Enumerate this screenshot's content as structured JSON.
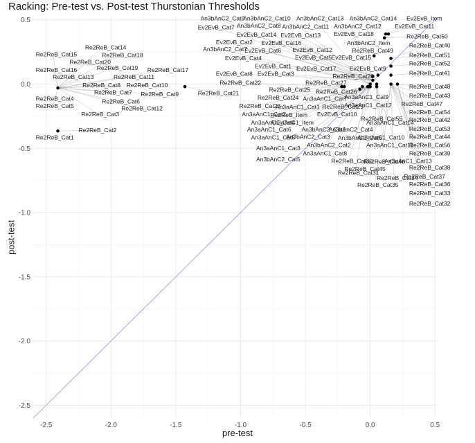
{
  "chart_data": {
    "type": "scatter",
    "title": "Racking: Pre-test vs. Post-test Thurstonian Thresholds",
    "xlabel": "pre-test",
    "ylabel": "post-test",
    "xlim": [
      -2.6,
      0.52
    ],
    "ylim": [
      -2.6,
      0.52
    ],
    "x_ticks": [
      -2.5,
      -2.0,
      -1.5,
      -1.0,
      -0.5,
      0.0,
      0.5
    ],
    "x_tick_labels": [
      "-2.5",
      "-2.0",
      "-1.5",
      "-1.0",
      "-0.5",
      "0.0",
      "0.5"
    ],
    "y_ticks": [
      -2.5,
      -2.0,
      -1.5,
      -1.0,
      -0.5,
      0.0,
      0.5
    ],
    "y_tick_labels": [
      "-2.5",
      "-2.0",
      "-1.5",
      "-1.0",
      "-0.5",
      "0.0",
      "0.5"
    ],
    "grid": true,
    "reference_line": "y = x",
    "reference_line_color": "#8f8ff5",
    "point_color": "#000000",
    "points": [
      {
        "label": "Re2ReB_Cat1",
        "x": -2.41,
        "y": -0.365,
        "lx": -2.58,
        "ly": -0.43
      },
      {
        "label": "Re2ReB_Cat2",
        "x": -2.41,
        "y": -0.365,
        "lx": -2.25,
        "ly": -0.375
      },
      {
        "label": "Re2ReB_Cat3",
        "x": -2.41,
        "y": -0.03,
        "lx": -2.23,
        "ly": -0.25
      },
      {
        "label": "Re2ReB_Cat4",
        "x": -2.41,
        "y": -0.03,
        "lx": -2.58,
        "ly": -0.13
      },
      {
        "label": "Re2ReB_Cat5",
        "x": -2.41,
        "y": -0.03,
        "lx": -2.58,
        "ly": -0.185
      },
      {
        "label": "Re2ReB_Cat6",
        "x": -2.41,
        "y": -0.03,
        "lx": -2.07,
        "ly": -0.15
      },
      {
        "label": "Re2ReB_Cat7",
        "x": -2.41,
        "y": -0.03,
        "lx": -2.13,
        "ly": -0.08
      },
      {
        "label": "Re2ReB_Cat8",
        "x": -2.41,
        "y": -0.03,
        "lx": -2.22,
        "ly": -0.025
      },
      {
        "label": "Re2ReB_Cat9",
        "x": -2.41,
        "y": -0.03,
        "lx": -1.77,
        "ly": -0.095
      },
      {
        "label": "Re2ReB_Cat10",
        "x": -2.41,
        "y": -0.03,
        "lx": -1.88,
        "ly": -0.025
      },
      {
        "label": "Re2ReB_Cat11",
        "x": -2.41,
        "y": -0.03,
        "lx": -1.98,
        "ly": 0.04
      },
      {
        "label": "Re2ReB_Cat12",
        "x": -2.41,
        "y": -0.03,
        "lx": -1.92,
        "ly": -0.205
      },
      {
        "label": "Re2ReB_Cat13",
        "x": -2.41,
        "y": -0.03,
        "lx": -2.45,
        "ly": 0.04
      },
      {
        "label": "Re2ReB_Cat14",
        "x": -2.41,
        "y": -0.03,
        "lx": -2.2,
        "ly": 0.27
      },
      {
        "label": "Re2ReB_Cat15",
        "x": -2.41,
        "y": -0.03,
        "lx": -2.58,
        "ly": 0.215
      },
      {
        "label": "Re2ReB_Cat16",
        "x": -2.41,
        "y": -0.03,
        "lx": -2.58,
        "ly": 0.095
      },
      {
        "label": "Re2ReB_Cat17",
        "x": -2.41,
        "y": -0.03,
        "lx": -1.72,
        "ly": 0.095
      },
      {
        "label": "Re2ReB_Cat18",
        "x": -2.41,
        "y": -0.03,
        "lx": -2.07,
        "ly": 0.21
      },
      {
        "label": "Re2ReB_Cat19",
        "x": -2.41,
        "y": -0.03,
        "lx": -2.11,
        "ly": 0.11
      },
      {
        "label": "Re2ReB_Cat20",
        "x": -2.41,
        "y": -0.03,
        "lx": -2.32,
        "ly": 0.155
      },
      {
        "label": "Re2ReB_Cat21",
        "x": -1.43,
        "y": -0.02,
        "lx": -1.33,
        "ly": -0.085
      },
      {
        "label": "Re2ReB_Cat22",
        "x": -0.22,
        "y": -0.02,
        "lx": -1.16,
        "ly": -0.005
      },
      {
        "label": "Re2ReB_Cat23",
        "x": -0.2,
        "y": -0.02,
        "lx": -1.01,
        "ly": -0.185
      },
      {
        "label": "Re2ReB_Cat24",
        "x": -0.2,
        "y": -0.02,
        "lx": -0.87,
        "ly": -0.12
      },
      {
        "label": "Re2ReB_Cat25",
        "x": -0.2,
        "y": -0.02,
        "lx": -0.78,
        "ly": -0.06
      },
      {
        "label": "Re2ReB_Cat26",
        "x": -0.2,
        "y": -0.02,
        "lx": -0.42,
        "ly": -0.075
      },
      {
        "label": "Re2ReB_Cat27",
        "x": -0.2,
        "y": -0.02,
        "lx": -0.5,
        "ly": -0.005
      },
      {
        "label": "Re2ReB_Cat28",
        "x": -0.2,
        "y": -0.02,
        "lx": -0.29,
        "ly": 0.045
      },
      {
        "label": "Re2ReB_Cat29",
        "x": -0.2,
        "y": -0.02,
        "lx": -0.37,
        "ly": -0.19
      },
      {
        "label": "Re2ReB_Cat30",
        "x": -0.01,
        "y": -0.02,
        "lx": -0.3,
        "ly": -0.615
      },
      {
        "label": "Re2ReB_Cat31",
        "x": -0.01,
        "y": -0.02,
        "lx": -0.25,
        "ly": -0.705
      },
      {
        "label": "Re2ReB_Cat32",
        "x": 0.21,
        "y": 0.0,
        "lx": 0.3,
        "ly": -0.945
      },
      {
        "label": "Re2ReB_Cat33",
        "x": 0.21,
        "y": 0.0,
        "lx": 0.3,
        "ly": -0.865
      },
      {
        "label": "Re2ReB_Cat34",
        "x": 0.16,
        "y": 0.0,
        "lx": 0.05,
        "ly": -0.745
      },
      {
        "label": "Re2ReB_Cat35",
        "x": 0.16,
        "y": 0.0,
        "lx": -0.1,
        "ly": -0.8
      },
      {
        "label": "Re2ReB_Cat36",
        "x": 0.21,
        "y": 0.0,
        "lx": 0.3,
        "ly": -0.795
      },
      {
        "label": "Re2ReB_Cat37",
        "x": 0.16,
        "y": 0.0,
        "lx": 0.26,
        "ly": -0.735
      },
      {
        "label": "Re2ReB_Cat38",
        "x": 0.16,
        "y": 0.0,
        "lx": 0.3,
        "ly": -0.665
      },
      {
        "label": "Re2ReB_Cat39",
        "x": 0.16,
        "y": 0.0,
        "lx": 0.3,
        "ly": -0.555
      },
      {
        "label": "Re2ReB_Cat40",
        "x": 0.16,
        "y": 0.2,
        "lx": 0.3,
        "ly": 0.285
      },
      {
        "label": "Re2ReB_Cat41",
        "x": 0.16,
        "y": 0.07,
        "lx": 0.3,
        "ly": 0.07
      },
      {
        "label": "Re2ReB_Cat42",
        "x": 0.16,
        "y": 0.0,
        "lx": 0.3,
        "ly": -0.295
      },
      {
        "label": "Re2ReB_Cat43",
        "x": 0.16,
        "y": 0.0,
        "lx": 0.3,
        "ly": -0.105
      },
      {
        "label": "Re2ReB_Cat44",
        "x": 0.16,
        "y": 0.0,
        "lx": 0.3,
        "ly": -0.425
      },
      {
        "label": "Re2ReB_Cat45",
        "x": 0.16,
        "y": 0.0,
        "lx": -0.2,
        "ly": -0.675
      },
      {
        "label": "Re2ReB_Cat46",
        "x": 0.16,
        "y": 0.0,
        "lx": -0.05,
        "ly": -0.62
      },
      {
        "label": "Re2ReB_Cat47",
        "x": 0.16,
        "y": 0.0,
        "lx": 0.24,
        "ly": -0.17
      },
      {
        "label": "Re2ReB_Cat48",
        "x": 0.16,
        "y": 0.0,
        "lx": 0.3,
        "ly": -0.035
      },
      {
        "label": "Re2ReB_Cat49",
        "x": 0.03,
        "y": 0.22,
        "lx": -0.14,
        "ly": 0.245
      },
      {
        "label": "Re2ReB_Cat50",
        "x": 0.11,
        "y": 0.36,
        "lx": 0.28,
        "ly": 0.355
      },
      {
        "label": "Re2ReB_Cat51",
        "x": 0.16,
        "y": 0.2,
        "lx": 0.3,
        "ly": 0.21
      },
      {
        "label": "Re2ReB_Cat52",
        "x": 0.16,
        "y": 0.14,
        "lx": 0.3,
        "ly": 0.145
      },
      {
        "label": "Re2ReB_Cat53",
        "x": 0.16,
        "y": 0.0,
        "lx": 0.3,
        "ly": -0.365
      },
      {
        "label": "Re2ReB_Cat54",
        "x": 0.16,
        "y": 0.0,
        "lx": 0.3,
        "ly": -0.235
      },
      {
        "label": "Re2ReB_Cat55",
        "x": 0.05,
        "y": 0.0,
        "lx": -0.07,
        "ly": -0.285
      },
      {
        "label": "Re2ReB_Cat56",
        "x": 0.16,
        "y": 0.0,
        "lx": 0.3,
        "ly": -0.49
      },
      {
        "label": "Re2ReB_Item",
        "x": -0.08,
        "y": -0.04,
        "lx": -0.77,
        "ly": -0.255
      },
      {
        "label": "An3aAnC1_Cat1",
        "x": -0.06,
        "y": -0.02,
        "lx": -0.73,
        "ly": -0.195
      },
      {
        "label": "An3aAnC1_Cat2",
        "x": -0.06,
        "y": -0.02,
        "lx": -0.99,
        "ly": -0.25
      },
      {
        "label": "An3aAnC1_Cat3",
        "x": -0.02,
        "y": -0.02,
        "lx": -0.88,
        "ly": -0.515
      },
      {
        "label": "An3aAnC1_Cat4",
        "x": -0.02,
        "y": -0.02,
        "lx": -0.92,
        "ly": -0.315
      },
      {
        "label": "An3aAnC1_Cat5",
        "x": -0.02,
        "y": -0.02,
        "lx": -0.92,
        "ly": -0.43
      },
      {
        "label": "An3aAnC1_Cat6",
        "x": -0.02,
        "y": -0.02,
        "lx": -0.95,
        "ly": -0.37
      },
      {
        "label": "An3aAnC1_Cat7",
        "x": -0.02,
        "y": -0.02,
        "lx": -0.52,
        "ly": -0.13
      },
      {
        "label": "An3aAnC1_Cat8",
        "x": -0.02,
        "y": -0.02,
        "lx": -0.52,
        "ly": -0.555
      },
      {
        "label": "An3aAnC1_Cat9",
        "x": -0.02,
        "y": -0.02,
        "lx": -0.2,
        "ly": -0.115
      },
      {
        "label": "An3aAnC1_Cat10",
        "x": 0.05,
        "y": -0.02,
        "lx": -0.1,
        "ly": -0.43
      },
      {
        "label": "An3aAnC1_Cat11",
        "x": 0.05,
        "y": -0.02,
        "lx": -0.03,
        "ly": -0.49
      },
      {
        "label": "An3aAnC1_Cat12",
        "x": 0.05,
        "y": -0.02,
        "lx": -0.2,
        "ly": -0.18
      },
      {
        "label": "An3aAnC1_Cat13",
        "x": 0.05,
        "y": -0.02,
        "lx": 0.11,
        "ly": -0.615
      },
      {
        "label": "An3aAnC1_Cat14",
        "x": 0.05,
        "y": -0.02,
        "lx": -0.03,
        "ly": -0.315
      },
      {
        "label": "An3aAnC1_Item",
        "x": 0.0,
        "y": -0.02,
        "lx": -0.77,
        "ly": -0.315
      },
      {
        "label": "An3bAnC2_Cat1",
        "x": 0.0,
        "y": -0.02,
        "lx": -0.53,
        "ly": -0.37
      },
      {
        "label": "An3bAnC2_Cat2",
        "x": 0.0,
        "y": -0.02,
        "lx": -0.49,
        "ly": -0.49
      },
      {
        "label": "An3bAnC2_Cat3",
        "x": 0.0,
        "y": -0.02,
        "lx": -0.65,
        "ly": -0.425
      },
      {
        "label": "An3bAnC2_Cat4",
        "x": 0.0,
        "y": -0.02,
        "lx": -0.32,
        "ly": -0.37
      },
      {
        "label": "An3bAnC2_Cat5",
        "x": 0.0,
        "y": -0.02,
        "lx": -0.88,
        "ly": -0.6
      },
      {
        "label": "An3bAnC2_Cat6",
        "x": 0.0,
        "y": -0.02,
        "lx": -0.25,
        "ly": -0.435
      },
      {
        "label": "An3bAnC2_Cat7",
        "x": 0.0,
        "y": 0.0,
        "lx": -1.29,
        "ly": 0.255
      },
      {
        "label": "An3bAnC2_Cat8",
        "x": 0.0,
        "y": 0.0,
        "lx": -1.03,
        "ly": 0.44
      },
      {
        "label": "An3bAnC2_Cat9",
        "x": 0.0,
        "y": 0.0,
        "lx": -1.31,
        "ly": 0.495
      },
      {
        "label": "An3bAnC2_Cat10",
        "x": 0.0,
        "y": 0.0,
        "lx": -0.98,
        "ly": 0.495
      },
      {
        "label": "An3bAnC2_Cat11",
        "x": 0.0,
        "y": 0.0,
        "lx": -0.68,
        "ly": 0.43
      },
      {
        "label": "An3bAnC2_Cat12",
        "x": 0.0,
        "y": 0.0,
        "lx": -0.28,
        "ly": 0.435
      },
      {
        "label": "An3bAnC2_Cat13",
        "x": 0.0,
        "y": 0.0,
        "lx": -0.57,
        "ly": 0.495
      },
      {
        "label": "An3bAnC2_Cat14",
        "x": 0.0,
        "y": 0.0,
        "lx": -0.16,
        "ly": 0.495
      },
      {
        "label": "An3bAnC2_Item",
        "x": 0.06,
        "y": 0.07,
        "lx": -0.18,
        "ly": 0.305
      },
      {
        "label": "Ev2EvB_Cat1",
        "x": 0.02,
        "y": 0.03,
        "lx": -0.89,
        "ly": 0.125
      },
      {
        "label": "Ev2EvB_Cat2",
        "x": 0.02,
        "y": 0.03,
        "lx": -1.19,
        "ly": 0.31
      },
      {
        "label": "Ev2EvB_Cat3",
        "x": 0.02,
        "y": 0.03,
        "lx": -0.87,
        "ly": 0.065
      },
      {
        "label": "Ev2EvB_Cat4",
        "x": 0.02,
        "y": 0.03,
        "lx": -1.12,
        "ly": 0.185
      },
      {
        "label": "Ev2EvB_Cat5",
        "x": 0.02,
        "y": 0.03,
        "lx": -0.58,
        "ly": 0.19
      },
      {
        "label": "Ev2EvB_Cat6",
        "x": 0.02,
        "y": 0.03,
        "lx": -0.97,
        "ly": 0.245
      },
      {
        "label": "Ev2EvB_Cat7",
        "x": 0.02,
        "y": 0.03,
        "lx": -1.33,
        "ly": 0.425
      },
      {
        "label": "Ev2EvB_Cat8",
        "x": 0.02,
        "y": 0.03,
        "lx": -1.19,
        "ly": 0.065
      },
      {
        "label": "Ev2EvB_Cat9",
        "x": 0.02,
        "y": 0.03,
        "lx": -0.16,
        "ly": 0.105
      },
      {
        "label": "Ev2EvB_Cat10",
        "x": 0.02,
        "y": 0.03,
        "lx": -0.41,
        "ly": -0.25
      },
      {
        "label": "Ev2EvB_Cat11",
        "x": 0.14,
        "y": 0.39,
        "lx": 0.19,
        "ly": 0.435
      },
      {
        "label": "Ev2EvB_Cat12",
        "x": 0.02,
        "y": 0.06,
        "lx": -0.6,
        "ly": 0.25
      },
      {
        "label": "Ev2EvB_Cat13",
        "x": 0.02,
        "y": 0.06,
        "lx": -0.69,
        "ly": 0.365
      },
      {
        "label": "Ev2EvB_Cat14",
        "x": 0.02,
        "y": 0.06,
        "lx": -1.03,
        "ly": 0.37
      },
      {
        "label": "Ev2EvB_Cat15",
        "x": 0.02,
        "y": 0.06,
        "lx": -0.3,
        "ly": 0.19
      },
      {
        "label": "Ev2EvB_Cat16",
        "x": 0.02,
        "y": 0.06,
        "lx": -0.84,
        "ly": 0.305
      },
      {
        "label": "Ev2EvB_Cat17",
        "x": 0.02,
        "y": 0.06,
        "lx": -0.57,
        "ly": 0.105
      },
      {
        "label": "Ev2EvB_Cat18",
        "x": 0.02,
        "y": 0.06,
        "lx": -0.28,
        "ly": 0.375
      },
      {
        "label": "Ev2EvB_Item",
        "x": 0.12,
        "y": 0.39,
        "lx": 0.28,
        "ly": 0.495
      }
    ]
  }
}
